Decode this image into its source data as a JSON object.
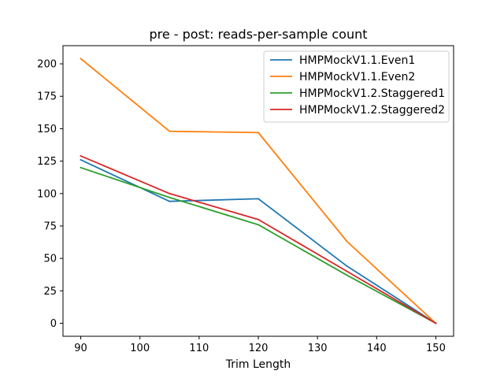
{
  "chart_data": {
    "type": "line",
    "title": "pre - post: reads-per-sample count",
    "xlabel": "Trim Length",
    "ylabel": "",
    "xlim": [
      87,
      153
    ],
    "ylim": [
      -10,
      214
    ],
    "xticks": [
      90,
      100,
      110,
      120,
      130,
      140,
      150
    ],
    "yticks": [
      0,
      25,
      50,
      75,
      100,
      125,
      150,
      175,
      200
    ],
    "legend_position": "top-right",
    "grid": false,
    "series": [
      {
        "name": "HMPMockV1.1.Even1",
        "color": "#1f77b4",
        "x": [
          90,
          105,
          120,
          135,
          150
        ],
        "values": [
          126,
          94,
          96,
          44,
          0
        ]
      },
      {
        "name": "HMPMockV1.1.Even2",
        "color": "#ff7f0e",
        "x": [
          90,
          105,
          120,
          135,
          150
        ],
        "values": [
          204,
          148,
          147,
          63,
          0
        ]
      },
      {
        "name": "HMPMockV1.2.Staggered1",
        "color": "#2ca02c",
        "x": [
          90,
          105,
          120,
          135,
          150
        ],
        "values": [
          120,
          97,
          76,
          37,
          0
        ]
      },
      {
        "name": "HMPMockV1.2.Staggered2",
        "color": "#d62728",
        "x": [
          90,
          105,
          120,
          135,
          150
        ],
        "values": [
          129,
          100,
          80,
          40,
          0
        ]
      }
    ]
  }
}
